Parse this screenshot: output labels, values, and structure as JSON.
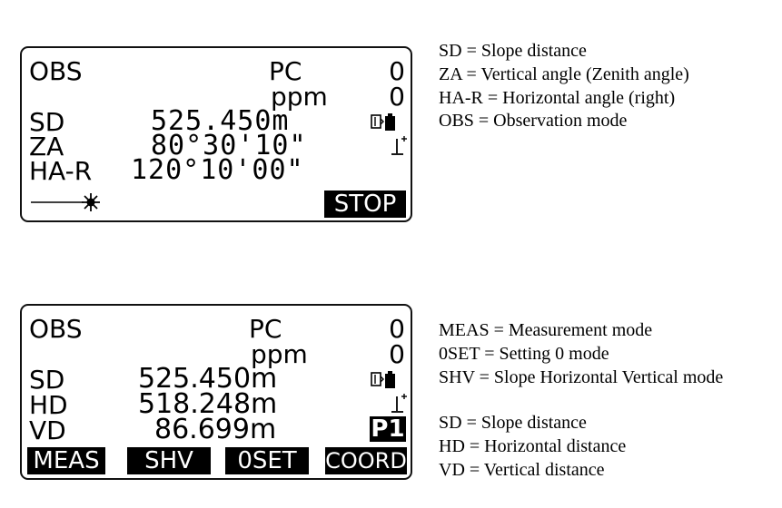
{
  "screen1": {
    "mode": "OBS",
    "pc_label": "PC",
    "pc_value": "0",
    "ppm_label": "ppm",
    "ppm_value": "0",
    "rows": [
      {
        "label": "SD",
        "value": "525.450m"
      },
      {
        "label": "ZA",
        "value": "80°30'10\""
      },
      {
        "label": "HA-R",
        "value": "120°10'00\""
      }
    ],
    "softkey": "STOP",
    "icons": [
      "battery-icon",
      "tilt-icon",
      "laser-beam-icon"
    ]
  },
  "screen2": {
    "mode": "OBS",
    "pc_label": "PC",
    "pc_value": "0",
    "ppm_label": "ppm",
    "ppm_value": "0",
    "rows": [
      {
        "label": "SD",
        "value": "525.450m"
      },
      {
        "label": "HD",
        "value": "518.248m"
      },
      {
        "label": "VD",
        "value": "86.699m"
      }
    ],
    "page": "P1",
    "softkeys": [
      "MEAS",
      "SHV",
      "0SET",
      "COORD"
    ],
    "icons": [
      "battery-icon",
      "tilt-icon"
    ]
  },
  "legend1": [
    "SD = Slope distance",
    "ZA = Vertical angle (Zenith angle)",
    "HA-R = Horizontal angle (right)",
    "OBS = Observation mode"
  ],
  "legend2a": [
    "MEAS = Measurement mode",
    "0SET = Setting 0 mode",
    "SHV = Slope Horizontal Vertical mode"
  ],
  "legend2b": [
    "SD = Slope distance",
    "HD = Horizontal distance",
    "VD = Vertical distance"
  ]
}
